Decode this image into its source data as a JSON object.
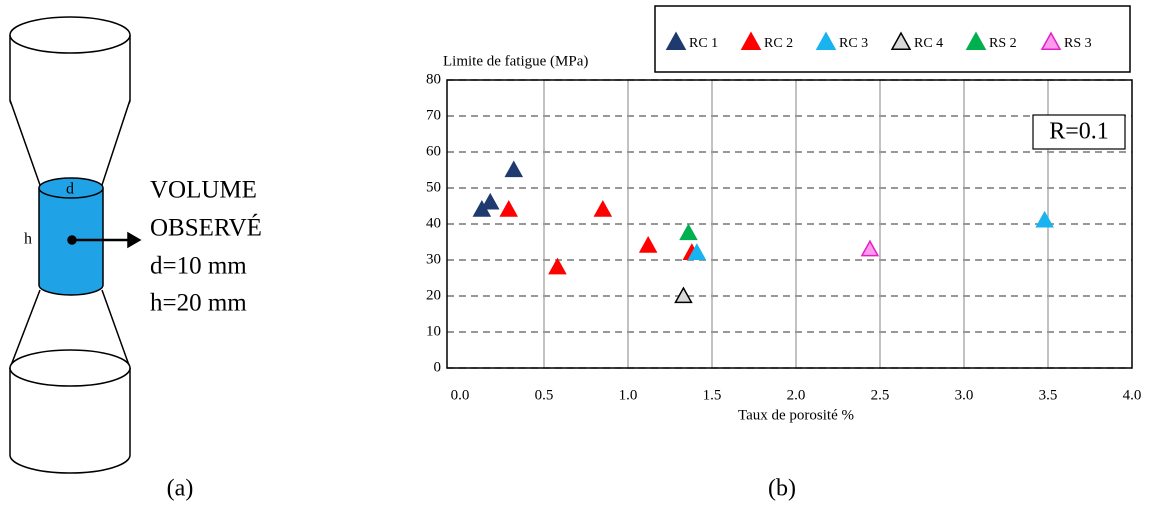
{
  "diagram": {
    "d_label": "d",
    "h_label": "h",
    "lines": [
      "VOLUME",
      "OBSERVÉ",
      "d=10 mm",
      "h=20 mm"
    ],
    "caption": "(a)"
  },
  "chart_data": {
    "type": "scatter",
    "caption": "(b)",
    "y_label": "Limite de fatigue (MPa)",
    "x_label": "Taux de porosité %",
    "annotation": "R=0.1",
    "xlim": [
      0,
      4
    ],
    "ylim": [
      0,
      80
    ],
    "xticks": [
      {
        "value": 0,
        "label": "0.0"
      },
      0.5,
      {
        "value": 1,
        "label": "1.0"
      },
      1.5,
      {
        "value": 2,
        "label": "2.0"
      },
      2.5,
      {
        "value": 3,
        "label": "3.0"
      },
      3.5,
      {
        "value": 4,
        "label": "4.0"
      }
    ],
    "yticks": [
      0,
      10,
      20,
      30,
      40,
      50,
      60,
      70,
      80
    ],
    "grid": true,
    "series": [
      {
        "name": "RC 1",
        "color": "#1f3a6e",
        "edgecolor": "#1f3a6e",
        "x": [
          0.13,
          0.18,
          0.32
        ],
        "values": [
          44,
          46,
          55
        ]
      },
      {
        "name": "RC 2",
        "color": "#ff0000",
        "edgecolor": "#ff0000",
        "x": [
          0.29,
          0.58,
          0.85,
          1.12,
          1.38
        ],
        "values": [
          44,
          28,
          44,
          34,
          32
        ]
      },
      {
        "name": "RC 3",
        "color": "#19b4ef",
        "edgecolor": "#19b4ef",
        "x": [
          1.41,
          3.48
        ],
        "values": [
          32,
          41
        ]
      },
      {
        "name": "RC 4",
        "color": "#d9d9d9",
        "edgecolor": "#000000",
        "x": [
          1.33
        ],
        "values": [
          20
        ]
      },
      {
        "name": "RS 2",
        "color": "#00b050",
        "edgecolor": "#00b050",
        "x": [
          1.36
        ],
        "values": [
          37.5
        ]
      },
      {
        "name": "RS 3",
        "color": "#ff99ee",
        "edgecolor": "#e020c8",
        "x": [
          2.44
        ],
        "values": [
          33
        ]
      }
    ]
  }
}
